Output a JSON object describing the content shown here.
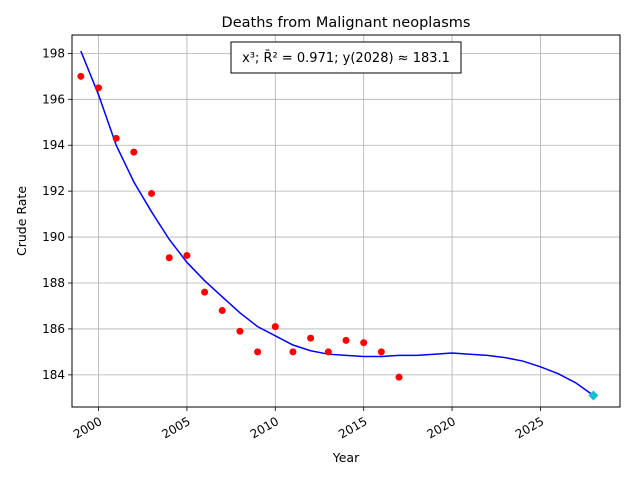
{
  "chart_data": {
    "type": "scatter",
    "title": "Deaths from Malignant neoplasms",
    "xlabel": "Year",
    "ylabel": "Crude Rate",
    "xlim": [
      1998.5,
      2029.5
    ],
    "ylim": [
      182.6,
      198.8
    ],
    "grid": true,
    "x_ticks": [
      2000,
      2005,
      2010,
      2015,
      2020,
      2025
    ],
    "x_tick_labels": [
      "2000",
      "2005",
      "2010",
      "2015",
      "2020",
      "2025"
    ],
    "y_ticks": [
      184,
      186,
      188,
      190,
      192,
      194,
      196,
      198
    ],
    "y_tick_labels": [
      "184",
      "186",
      "188",
      "190",
      "192",
      "194",
      "196",
      "198"
    ],
    "annotation": "x³; R̄² = 0.971; y(2028) ≈ 183.1",
    "series": [
      {
        "type": "scatter",
        "color": "#ff0000",
        "x": [
          1999,
          2000,
          2001,
          2002,
          2003,
          2004,
          2005,
          2006,
          2007,
          2008,
          2009,
          2010,
          2011,
          2012,
          2013,
          2014,
          2015,
          2016,
          2017
        ],
        "y": [
          197.0,
          196.5,
          194.3,
          193.7,
          191.9,
          189.1,
          189.2,
          187.6,
          186.8,
          185.9,
          185.0,
          186.1,
          185.0,
          185.6,
          185.0,
          185.5,
          185.4,
          185.0,
          183.9
        ]
      },
      {
        "type": "line",
        "color": "#0000ff",
        "x": [
          1999,
          2000,
          2001,
          2002,
          2003,
          2004,
          2005,
          2006,
          2007,
          2008,
          2009,
          2010,
          2011,
          2012,
          2013,
          2014,
          2015,
          2016,
          2017,
          2018,
          2019,
          2020,
          2021,
          2022,
          2023,
          2024,
          2025,
          2026,
          2027,
          2028
        ],
        "y": [
          198.1,
          196.2,
          194.0,
          192.4,
          191.1,
          189.9,
          188.9,
          188.1,
          187.4,
          186.7,
          186.1,
          185.7,
          185.3,
          185.05,
          184.9,
          184.85,
          184.8,
          184.8,
          184.85,
          184.85,
          184.9,
          184.95,
          184.9,
          184.85,
          184.75,
          184.6,
          184.35,
          184.05,
          183.65,
          183.1
        ]
      },
      {
        "type": "marker",
        "color": "#17becf",
        "x": [
          2028
        ],
        "y": [
          183.1
        ]
      }
    ]
  }
}
